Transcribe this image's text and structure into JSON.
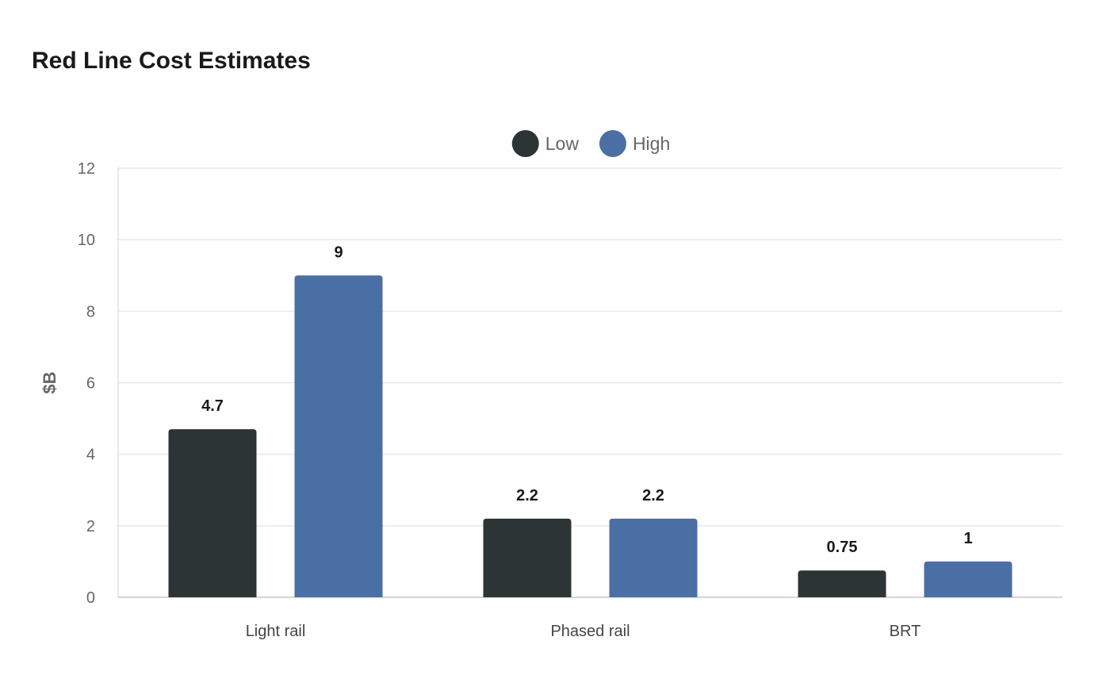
{
  "chart_data": {
    "type": "bar",
    "title": "Red Line Cost Estimates",
    "xlabel": "",
    "ylabel": "$B",
    "categories": [
      "Light rail",
      "Phased rail",
      "BRT"
    ],
    "series": [
      {
        "name": "Low",
        "color": "#2d3436",
        "values": [
          4.7,
          2.2,
          0.75
        ]
      },
      {
        "name": "High",
        "color": "#4a6fa5",
        "values": [
          9,
          2.2,
          1
        ]
      }
    ],
    "ylim": [
      0,
      12
    ],
    "yticks": [
      0,
      2,
      4,
      6,
      8,
      10,
      12
    ],
    "grid": true,
    "legend": "top-center"
  }
}
